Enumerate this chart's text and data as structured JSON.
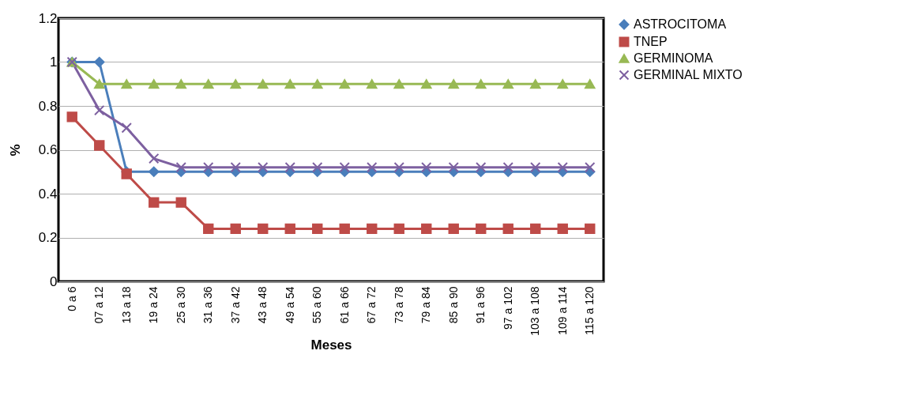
{
  "chart_data": {
    "type": "line",
    "xlabel": "Meses",
    "ylabel": "%",
    "categories": [
      "0 a 6",
      "07 a 12",
      "13 a 18",
      "19 a 24",
      "25 a 30",
      "31 a 36",
      "37 a 42",
      "43 a 48",
      "49 a 54",
      "55 a 60",
      "61 a 66",
      "67 a 72",
      "73 a 78",
      "79 a 84",
      "85 a 90",
      "91 a 96",
      "97 a 102",
      "103 a 108",
      "109 a 114",
      "115 a 120"
    ],
    "series": [
      {
        "name": "ASTROCITOMA",
        "color": "#4a7ebb",
        "marker": "diamond",
        "values": [
          1,
          1,
          0.5,
          0.5,
          0.5,
          0.5,
          0.5,
          0.5,
          0.5,
          0.5,
          0.5,
          0.5,
          0.5,
          0.5,
          0.5,
          0.5,
          0.5,
          0.5,
          0.5,
          0.5
        ]
      },
      {
        "name": "TNEP",
        "color": "#be4b48",
        "marker": "square",
        "values": [
          0.75,
          0.62,
          0.49,
          0.36,
          0.36,
          0.24,
          0.24,
          0.24,
          0.24,
          0.24,
          0.24,
          0.24,
          0.24,
          0.24,
          0.24,
          0.24,
          0.24,
          0.24,
          0.24,
          0.24
        ]
      },
      {
        "name": "GERMINOMA",
        "color": "#98b954",
        "marker": "triangle",
        "values": [
          1,
          0.9,
          0.9,
          0.9,
          0.9,
          0.9,
          0.9,
          0.9,
          0.9,
          0.9,
          0.9,
          0.9,
          0.9,
          0.9,
          0.9,
          0.9,
          0.9,
          0.9,
          0.9,
          0.9
        ]
      },
      {
        "name": "GERMINAL MIXTO",
        "color": "#7d60a0",
        "marker": "cross",
        "values": [
          1,
          0.78,
          0.7,
          0.56,
          0.52,
          0.52,
          0.52,
          0.52,
          0.52,
          0.52,
          0.52,
          0.52,
          0.52,
          0.52,
          0.52,
          0.52,
          0.52,
          0.52,
          0.52,
          0.52
        ]
      }
    ],
    "ylim": [
      0,
      1.2
    ],
    "yticks": [
      0,
      0.2,
      0.4,
      0.6,
      0.8,
      1,
      1.2
    ],
    "grid": "y",
    "legend": "right",
    "line_style": "solid"
  }
}
